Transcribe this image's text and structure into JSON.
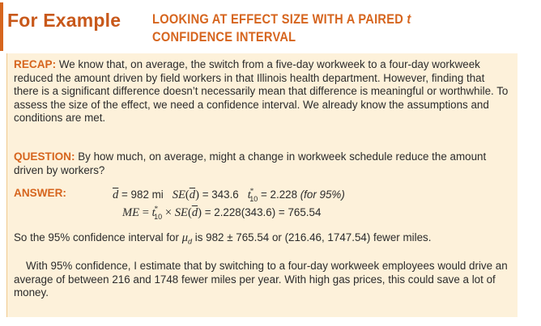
{
  "header": {
    "for_example": "For Example",
    "title_line1": "LOOKING AT EFFECT SIZE WITH A PAIRED",
    "title_var": "t",
    "title_line2": "CONFIDENCE INTERVAL"
  },
  "recap": {
    "label": "RECAP:",
    "text": " We know that, on average, the switch from a five-day workweek to a four-day workweek reduced the amount driven by field workers in that Illinois health department. However, finding that there is a significant difference doesn’t necessarily mean that difference is meaningful or worthwhile. To assess the size of the effect, we need a confidence interval. We already know the assumptions and conditions are met."
  },
  "question": {
    "label": "QUESTION:",
    "text": " By how much, on average, might a change in workweek schedule reduce the amount driven by workers?"
  },
  "answer": {
    "label": "ANSWER:",
    "eq1": {
      "dbar": "d",
      "dbar_val": " = 982 mi",
      "se_label": "SE",
      "se_arg": "d",
      "se_val": " = 343.6",
      "t_sym": "t",
      "t_sup": "*",
      "t_sub": "10",
      "t_val": " = 2.228",
      "t_note": "(for 95%)"
    },
    "eq2": {
      "me_label": "ME",
      "eq_sign": " = ",
      "t_sym": "t",
      "t_sup": "*",
      "t_sub": "10",
      "times": " × ",
      "se_label": "SE",
      "se_arg": "d",
      "result": " = 2.228(343.6) = 765.54"
    }
  },
  "conclusion": {
    "pre": "So the 95% confidence interval for ",
    "mu": "μ",
    "mu_sub": "d",
    "post": " is 982 ± 765.54 or (216.46, 1747.54) fewer miles."
  },
  "final": {
    "text": "With 95% confidence, I estimate that by switching to a four-day workweek employees would drive an average of between 216 and 1748 fewer miles per year. With high gas prices, this could save a lot of money."
  },
  "colors": {
    "accent": "#d6651e",
    "box_background": "#fdf1da",
    "text": "#2b2b2b"
  }
}
